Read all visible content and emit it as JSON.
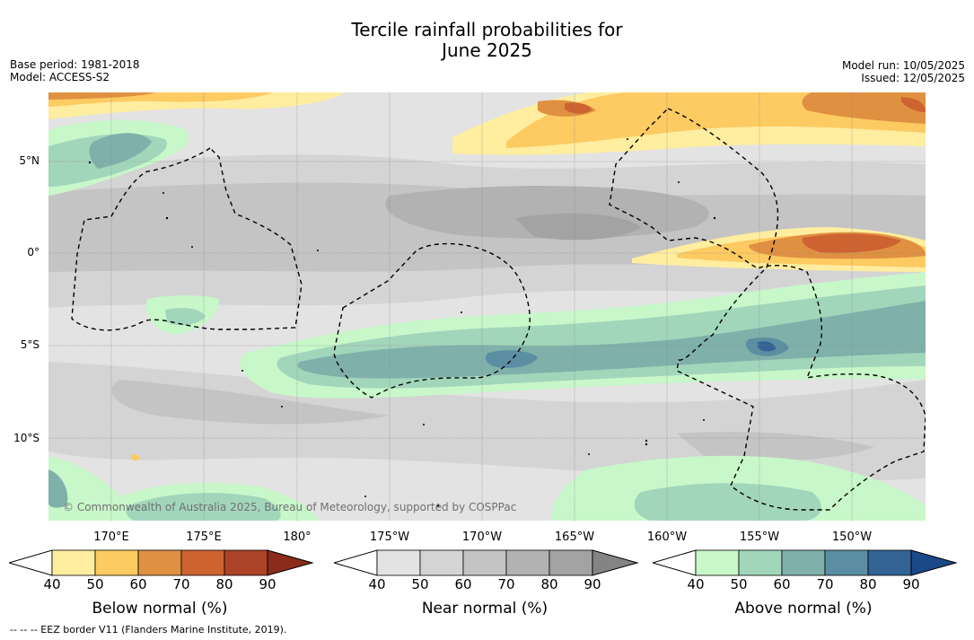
{
  "title": {
    "line1": "Tercile rainfall probabilities for",
    "line2": "June 2025"
  },
  "info_left": {
    "base_period": "Base period: 1981-2018",
    "model": "Model: ACCESS-S2"
  },
  "info_right": {
    "model_run": "Model run: 10/05/2025",
    "issued": "Issued: 12/05/2025"
  },
  "map": {
    "lat_labels": [
      "5°N",
      "0°",
      "5°S",
      "10°S"
    ],
    "lon_labels": [
      "170°E",
      "175°E",
      "180°",
      "175°W",
      "170°W",
      "165°W",
      "160°W",
      "155°W",
      "150°W"
    ],
    "copyright": "© Commonwealth of Australia 2025, Bureau of Meteorology, supported by COSPPac",
    "colors": {
      "background_grey": "#e3e3e3",
      "land": "#ffffff",
      "eez_border": "#000000"
    }
  },
  "colorbars": [
    {
      "title": "Below normal (%)",
      "ticks": [
        "40",
        "50",
        "60",
        "70",
        "80",
        "90"
      ],
      "colors": [
        "#ffffff",
        "#ffeda0",
        "#fdcb62",
        "#e09041",
        "#cc6331",
        "#ac4326",
        "#8a2b1c"
      ]
    },
    {
      "title": "Near normal (%)",
      "ticks": [
        "40",
        "50",
        "60",
        "70",
        "80",
        "90"
      ],
      "colors": [
        "#ffffff",
        "#e3e3e3",
        "#d4d4d4",
        "#c4c4c4",
        "#b2b2b2",
        "#a3a3a3",
        "#848484"
      ]
    },
    {
      "title": "Above normal (%)",
      "ticks": [
        "40",
        "50",
        "60",
        "70",
        "80",
        "90"
      ],
      "colors": [
        "#ffffff",
        "#c8f7ca",
        "#a2d6bb",
        "#7fb1aa",
        "#5b8ea3",
        "#326394",
        "#1b4987"
      ]
    }
  ],
  "footnote": "-- -- -- EEZ border V11 (Flanders Marine Institute, 2019)."
}
